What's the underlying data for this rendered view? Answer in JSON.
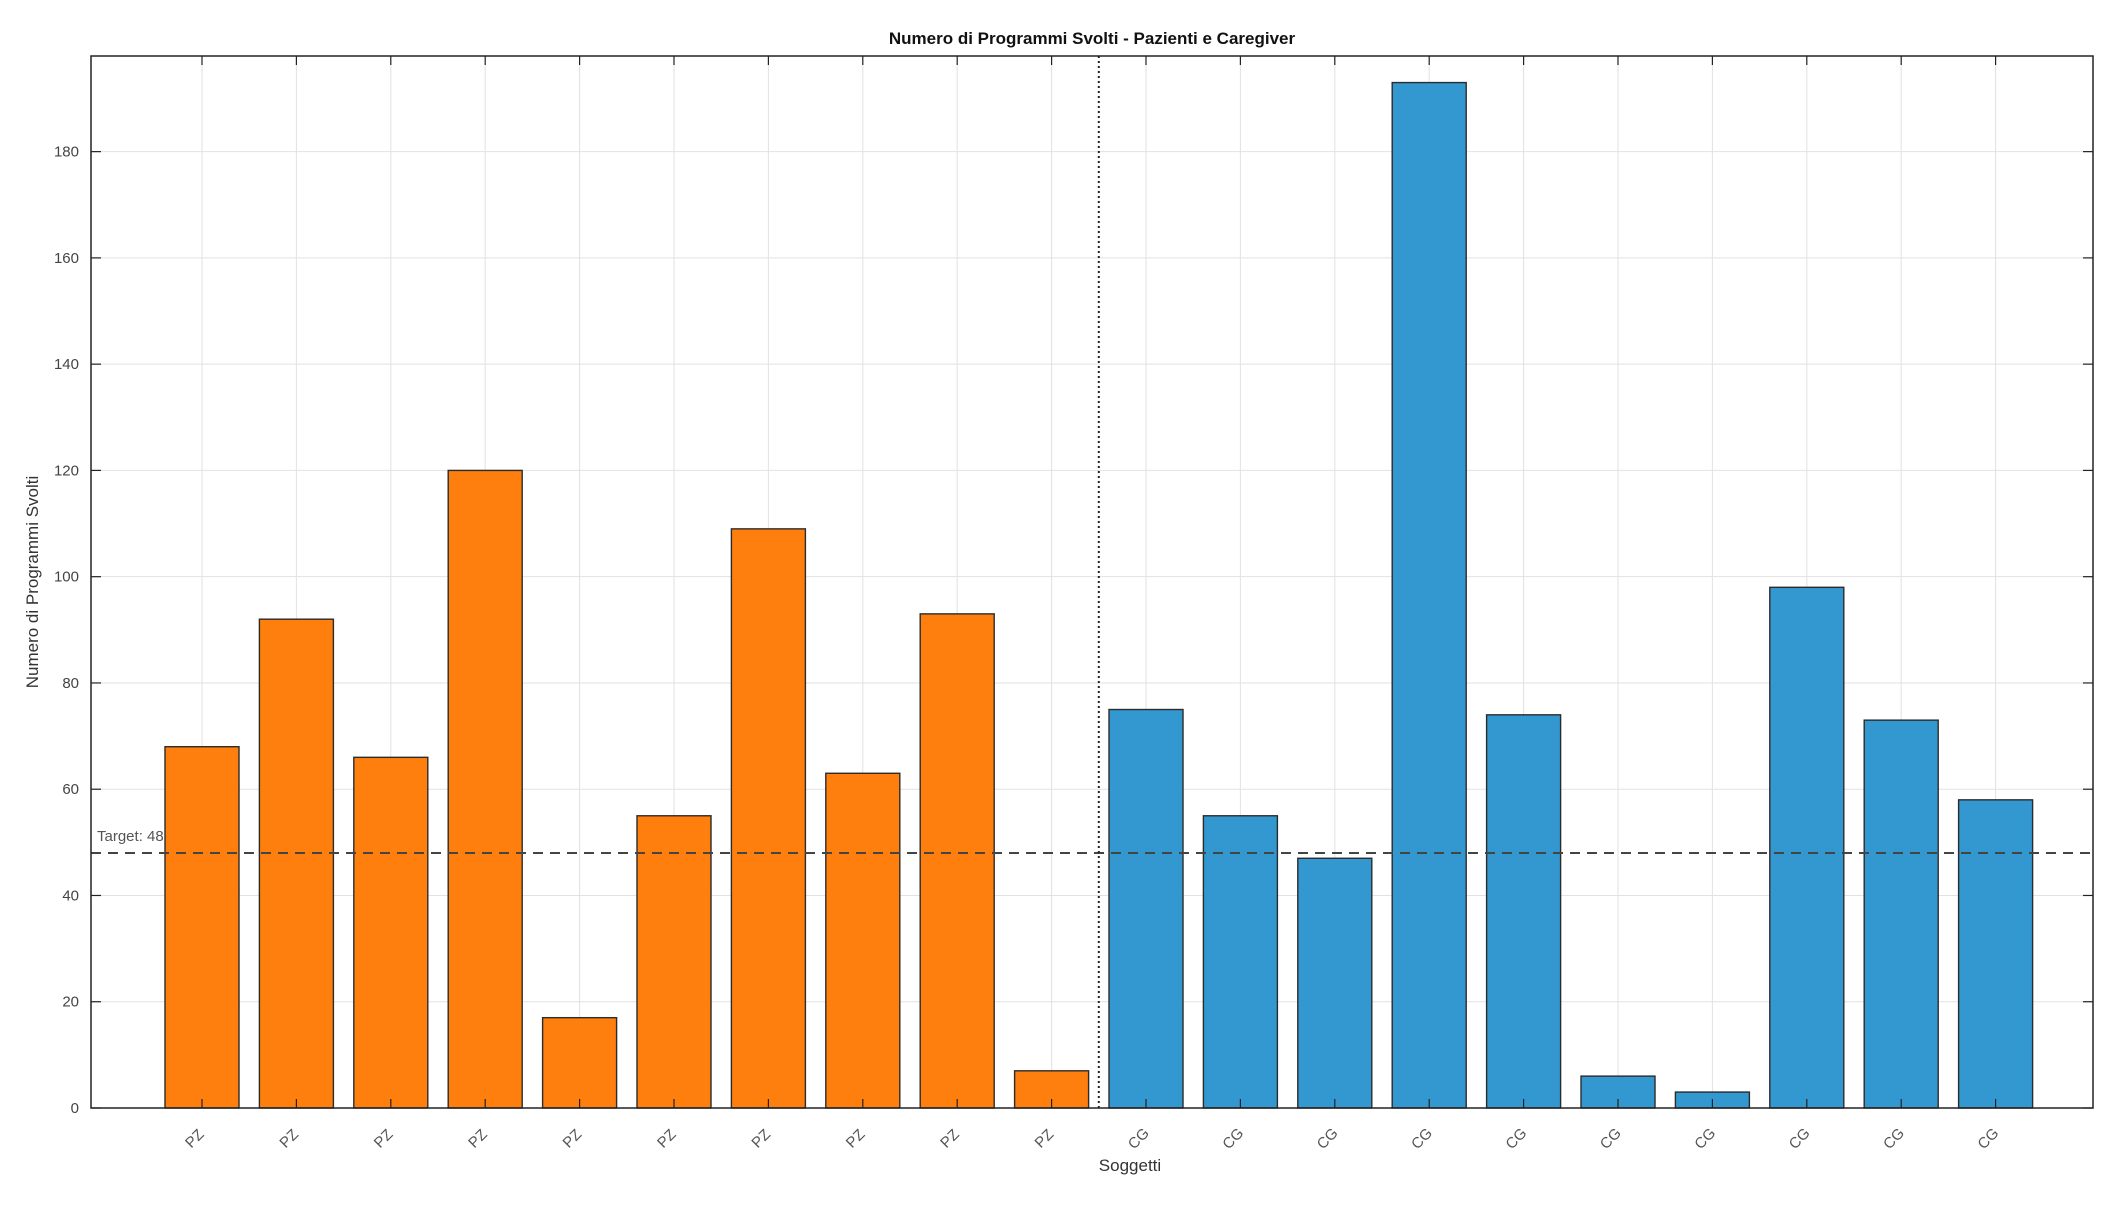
{
  "chart_data": {
    "type": "bar",
    "title": "Numero di Programmi Svolti - Pazienti e Caregiver",
    "xlabel": "Soggetti",
    "ylabel": "Numero di Programmi Svolti",
    "ylim": [
      0,
      198
    ],
    "yticks": [
      0,
      20,
      40,
      60,
      80,
      100,
      120,
      140,
      160,
      180
    ],
    "grid": true,
    "categories": [
      "PZ",
      "PZ",
      "PZ",
      "PZ",
      "PZ",
      "PZ",
      "PZ",
      "PZ",
      "PZ",
      "PZ",
      "CG",
      "CG",
      "CG",
      "CG",
      "CG",
      "CG",
      "CG",
      "CG",
      "CG",
      "CG"
    ],
    "values": [
      68,
      92,
      66,
      120,
      17,
      55,
      109,
      63,
      93,
      7,
      75,
      55,
      47,
      193,
      74,
      6,
      3,
      98,
      73,
      58
    ],
    "groups": [
      "PZ",
      "PZ",
      "PZ",
      "PZ",
      "PZ",
      "PZ",
      "PZ",
      "PZ",
      "PZ",
      "PZ",
      "CG",
      "CG",
      "CG",
      "CG",
      "CG",
      "CG",
      "CG",
      "CG",
      "CG",
      "CG"
    ],
    "colors": {
      "PZ": "#ff7f0e",
      "CG": "#3498d0"
    },
    "target": {
      "value": 48,
      "label": "Target: 48"
    },
    "separator_after_index": 9
  }
}
